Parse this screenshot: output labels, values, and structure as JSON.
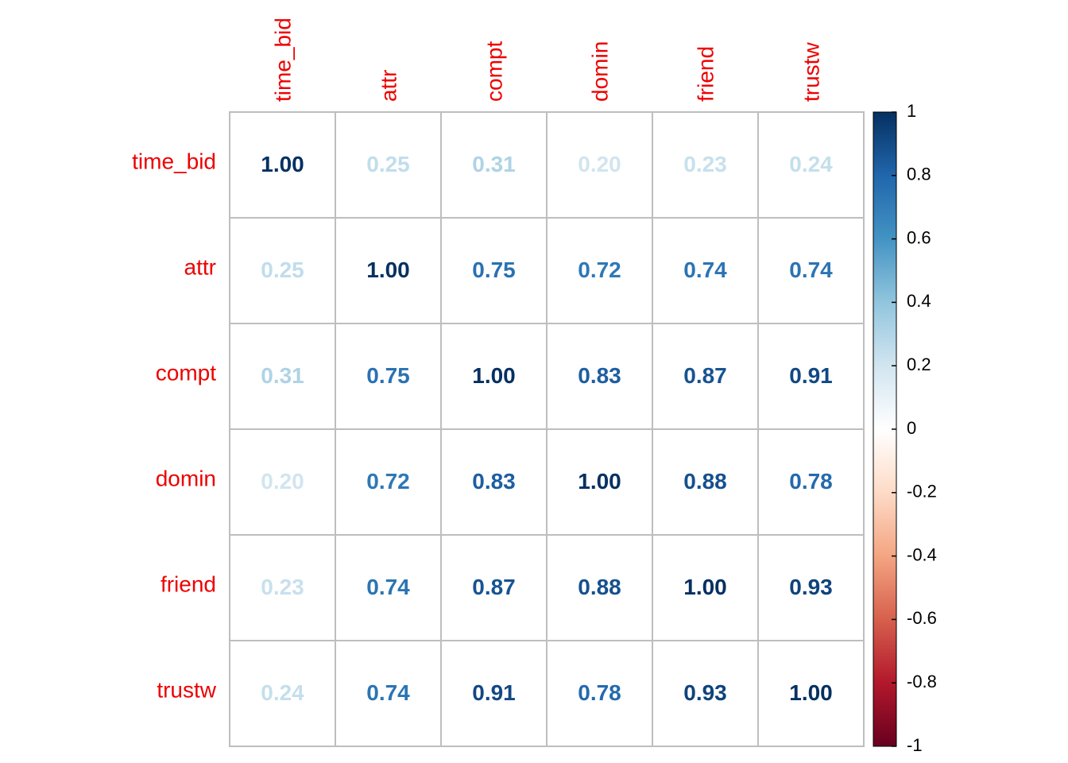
{
  "chart_data": {
    "type": "heatmap",
    "title": "",
    "variables": [
      "time_bid",
      "attr",
      "compt",
      "domin",
      "friend",
      "trustw"
    ],
    "matrix": [
      [
        1.0,
        0.25,
        0.31,
        0.2,
        0.23,
        0.24
      ],
      [
        0.25,
        1.0,
        0.75,
        0.72,
        0.74,
        0.74
      ],
      [
        0.31,
        0.75,
        1.0,
        0.83,
        0.87,
        0.91
      ],
      [
        0.2,
        0.72,
        0.83,
        1.0,
        0.88,
        0.78
      ],
      [
        0.23,
        0.74,
        0.87,
        0.88,
        1.0,
        0.93
      ],
      [
        0.24,
        0.74,
        0.91,
        0.78,
        0.93,
        1.0
      ]
    ],
    "colorbar": {
      "range": [
        -1,
        1
      ],
      "ticks": [
        1,
        0.8,
        0.6,
        0.4,
        0.2,
        0,
        -0.2,
        -0.4,
        -0.6,
        -0.8,
        -1
      ],
      "tick_labels": [
        "1",
        "0.8",
        "0.6",
        "0.4",
        "0.2",
        "0",
        "-0.2",
        "-0.4",
        "-0.6",
        "-0.8",
        "-1"
      ],
      "placement": "right"
    },
    "colors": {
      "label": "#ee0000",
      "grid": "#bebebe",
      "palette": [
        "#67001F",
        "#B2182B",
        "#D6604D",
        "#F4A582",
        "#FDDBC7",
        "#FFFFFF",
        "#D1E5F0",
        "#92C5DE",
        "#4393C3",
        "#2166AC",
        "#053061"
      ]
    }
  }
}
